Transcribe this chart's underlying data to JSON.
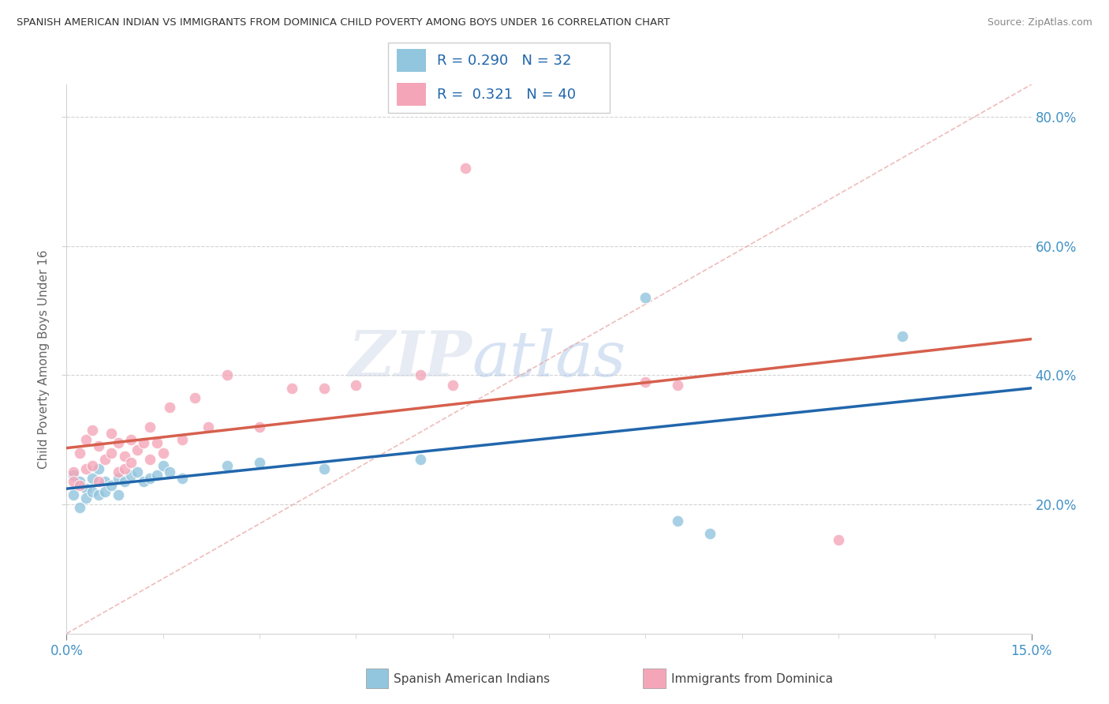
{
  "title": "SPANISH AMERICAN INDIAN VS IMMIGRANTS FROM DOMINICA CHILD POVERTY AMONG BOYS UNDER 16 CORRELATION CHART",
  "source": "Source: ZipAtlas.com",
  "ylabel": "Child Poverty Among Boys Under 16",
  "xlim": [
    0.0,
    0.15
  ],
  "ylim": [
    0.0,
    0.85
  ],
  "ytick_values": [
    0.2,
    0.4,
    0.6,
    0.8
  ],
  "ytick_labels": [
    "20.0%",
    "40.0%",
    "60.0%",
    "80.0%"
  ],
  "r_blue": 0.29,
  "n_blue": 32,
  "r_pink": 0.321,
  "n_pink": 40,
  "blue_color": "#92c5de",
  "pink_color": "#f4a6b8",
  "line_blue": "#2166ac",
  "line_pink": "#d6604d",
  "legend_label_blue": "Spanish American Indians",
  "legend_label_pink": "Immigrants from Dominica",
  "blue_x": [
    0.001,
    0.001,
    0.002,
    0.002,
    0.003,
    0.003,
    0.004,
    0.004,
    0.005,
    0.005,
    0.006,
    0.006,
    0.007,
    0.008,
    0.008,
    0.009,
    0.01,
    0.011,
    0.012,
    0.013,
    0.014,
    0.015,
    0.016,
    0.018,
    0.025,
    0.03,
    0.04,
    0.055,
    0.09,
    0.095,
    0.1,
    0.13
  ],
  "blue_y": [
    0.245,
    0.215,
    0.235,
    0.195,
    0.225,
    0.21,
    0.24,
    0.22,
    0.255,
    0.215,
    0.235,
    0.22,
    0.23,
    0.24,
    0.215,
    0.235,
    0.245,
    0.25,
    0.235,
    0.24,
    0.245,
    0.26,
    0.25,
    0.24,
    0.26,
    0.265,
    0.255,
    0.27,
    0.52,
    0.175,
    0.155,
    0.46
  ],
  "pink_x": [
    0.001,
    0.001,
    0.002,
    0.002,
    0.003,
    0.003,
    0.004,
    0.004,
    0.005,
    0.005,
    0.006,
    0.007,
    0.007,
    0.008,
    0.008,
    0.009,
    0.009,
    0.01,
    0.01,
    0.011,
    0.012,
    0.013,
    0.013,
    0.014,
    0.015,
    0.016,
    0.018,
    0.02,
    0.022,
    0.025,
    0.03,
    0.035,
    0.04,
    0.045,
    0.055,
    0.06,
    0.062,
    0.09,
    0.095,
    0.12
  ],
  "pink_y": [
    0.25,
    0.235,
    0.28,
    0.23,
    0.3,
    0.255,
    0.315,
    0.26,
    0.29,
    0.235,
    0.27,
    0.31,
    0.28,
    0.295,
    0.25,
    0.275,
    0.255,
    0.3,
    0.265,
    0.285,
    0.295,
    0.32,
    0.27,
    0.295,
    0.28,
    0.35,
    0.3,
    0.365,
    0.32,
    0.4,
    0.32,
    0.38,
    0.38,
    0.385,
    0.4,
    0.385,
    0.72,
    0.39,
    0.385,
    0.145
  ],
  "blue_trendline": [
    0.22,
    0.44
  ],
  "pink_trendline": [
    0.24,
    0.39
  ],
  "dashed_line": [
    [
      0.0,
      0.0
    ],
    [
      0.15,
      0.85
    ]
  ]
}
